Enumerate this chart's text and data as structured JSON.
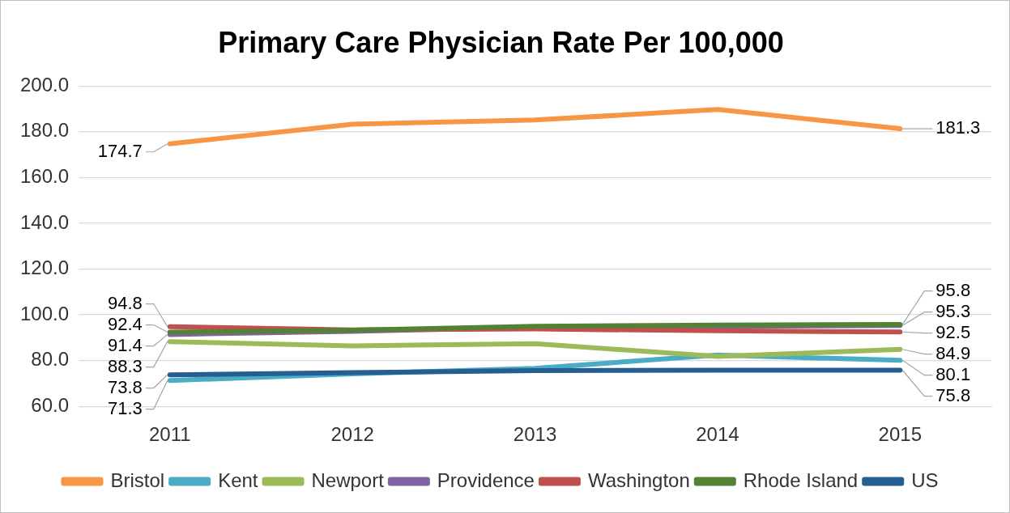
{
  "chart_data": {
    "type": "line",
    "title": "Primary Care Physician Rate Per 100,000",
    "categories": [
      "2011",
      "2012",
      "2013",
      "2014",
      "2015"
    ],
    "series": [
      {
        "name": "Bristol",
        "color": "#f79646",
        "values": [
          174.7,
          183.3,
          185.1,
          189.7,
          181.3
        ],
        "value_labels": [
          "174.7",
          null,
          null,
          null,
          "181.3"
        ]
      },
      {
        "name": "Kent",
        "color": "#4bacc6",
        "values": [
          71.3,
          74.2,
          76.6,
          82.4,
          80.1
        ],
        "value_labels": [
          "71.3",
          null,
          null,
          null,
          "80.1"
        ]
      },
      {
        "name": "Newport",
        "color": "#9bbb59",
        "values": [
          88.3,
          86.4,
          87.4,
          81.8,
          84.9
        ],
        "value_labels": [
          "88.3",
          null,
          null,
          null,
          "84.9"
        ]
      },
      {
        "name": "Providence",
        "color": "#8064a2",
        "values": [
          91.4,
          92.8,
          94.5,
          95.0,
          95.3
        ],
        "value_labels": [
          "91.4",
          null,
          null,
          null,
          "95.3"
        ]
      },
      {
        "name": "Washington",
        "color": "#c0504d",
        "values": [
          94.8,
          93.4,
          93.8,
          93.0,
          92.5
        ],
        "value_labels": [
          "94.8",
          null,
          null,
          null,
          "92.5"
        ]
      },
      {
        "name": "Rhode Island",
        "color": "#548235",
        "values": [
          92.4,
          93.3,
          95.0,
          95.5,
          95.8
        ],
        "value_labels": [
          "92.4",
          null,
          null,
          null,
          "95.8"
        ]
      },
      {
        "name": "US",
        "color": "#255e91",
        "values": [
          73.8,
          74.7,
          75.6,
          75.8,
          75.8
        ],
        "value_labels": [
          "73.8",
          null,
          null,
          null,
          "75.8"
        ]
      }
    ],
    "ylim": [
      60,
      200
    ],
    "yticks": [
      {
        "value": 60,
        "label": "60.0"
      },
      {
        "value": 80,
        "label": "80.0"
      },
      {
        "value": 100,
        "label": "100.0"
      },
      {
        "value": 120,
        "label": "120.0"
      },
      {
        "value": 140,
        "label": "140.0"
      },
      {
        "value": 160,
        "label": "160.0"
      },
      {
        "value": 180,
        "label": "180.0"
      },
      {
        "value": 200,
        "label": "200.0"
      }
    ],
    "grid": "y",
    "legend": "bottom"
  }
}
